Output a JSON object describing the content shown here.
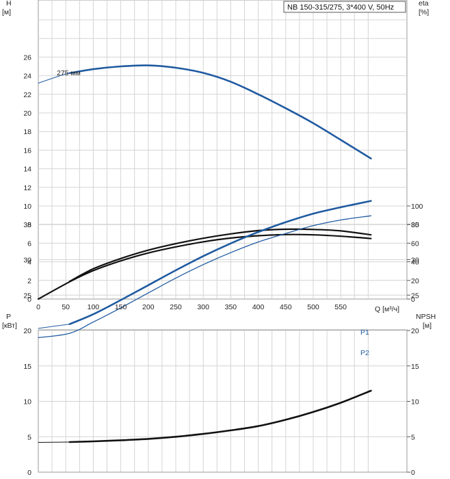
{
  "chart_data": [
    {
      "type": "line",
      "title": "NB 150-315/275, 3*400 V, 50Hz",
      "xlabel": "Q [м³/ч]",
      "ylabel_left": "H\n[м]",
      "ylabel_right": "eta\n[%]",
      "xlim": [
        0,
        610
      ],
      "ylim_left": [
        0,
        30
      ],
      "ylim_right": [
        0,
        100
      ],
      "x_ticks": [
        "0",
        "50",
        "100",
        "150",
        "200",
        "250",
        "300",
        "350",
        "400",
        "450",
        "500",
        "550"
      ],
      "y_left_ticks": [
        "0",
        "2",
        "4",
        "6",
        "8",
        "10",
        "12",
        "14",
        "16",
        "18",
        "20",
        "22",
        "24",
        "26"
      ],
      "y_right_ticks": [
        "0",
        "20",
        "40",
        "60",
        "80",
        "100"
      ],
      "grid": true,
      "series": [
        {
          "name": "275 мм",
          "axis": "left",
          "color": "#1f5aa0",
          "x": [
            0,
            50,
            100,
            150,
            200,
            250,
            300,
            350,
            400,
            450,
            500,
            550,
            605
          ],
          "y": [
            23.2,
            24.2,
            24.7,
            25.0,
            25.1,
            24.85,
            24.3,
            23.35,
            22.0,
            20.5,
            18.9,
            17.1,
            15.1
          ],
          "bold_from": 57
        },
        {
          "axis": "right",
          "color": "#111111",
          "x": [
            0,
            57,
            100,
            150,
            200,
            250,
            300,
            350,
            400,
            450,
            500,
            550,
            605
          ],
          "y": [
            0,
            18.5,
            30.5,
            41,
            49.5,
            56,
            61.5,
            65.5,
            68,
            69.3,
            69.0,
            67.5,
            65.0
          ]
        },
        {
          "axis": "right",
          "color": "#111111",
          "x": [
            57,
            100,
            150,
            200,
            250,
            300,
            350,
            400,
            450,
            500,
            550,
            605
          ],
          "y": [
            19.0,
            32.5,
            43.5,
            52.5,
            59.5,
            65.3,
            70.0,
            73.5,
            75.0,
            74.8,
            73.2,
            69.0
          ]
        }
      ]
    },
    {
      "type": "line",
      "ylabel_left": "P\n[кВт]",
      "ylabel_right": "NPSH\n[м]",
      "xlim": [
        0,
        610
      ],
      "ylim_left": [
        0,
        40
      ],
      "ylim_right": [
        0,
        40
      ],
      "y_left_ticks": [
        "0",
        "5",
        "10",
        "15",
        "20",
        "25",
        "30",
        "35"
      ],
      "y_right_ticks": [
        "0",
        "5",
        "10",
        "15",
        "20",
        "25",
        "30",
        "35"
      ],
      "grid": true,
      "series": [
        {
          "name": "P1",
          "axis": "left",
          "color": "#1f5aa0",
          "x": [
            0,
            57,
            100,
            150,
            200,
            250,
            300,
            350,
            400,
            450,
            500,
            550,
            605
          ],
          "y": [
            20.3,
            20.9,
            22.3,
            24.3,
            26.4,
            28.5,
            30.5,
            32.3,
            33.9,
            35.3,
            36.5,
            37.4,
            38.3
          ],
          "bold_from": 57
        },
        {
          "name": "P2",
          "axis": "left",
          "color": "#1f5aa0",
          "x": [
            0,
            57,
            100,
            150,
            200,
            250,
            300,
            350,
            400,
            450,
            500,
            550,
            605
          ],
          "y": [
            19.0,
            19.6,
            21.2,
            23.2,
            25.3,
            27.4,
            29.3,
            31.0,
            32.5,
            33.7,
            34.8,
            35.6,
            36.2
          ],
          "thin": true
        },
        {
          "axis": "right",
          "color": "#111111",
          "x": [
            0,
            57,
            100,
            150,
            200,
            250,
            300,
            350,
            400,
            450,
            500,
            550,
            605
          ],
          "y": [
            4.2,
            4.25,
            4.35,
            4.5,
            4.7,
            5.0,
            5.4,
            5.9,
            6.5,
            7.4,
            8.5,
            9.8,
            11.5
          ],
          "bold_from": 57
        }
      ]
    }
  ]
}
